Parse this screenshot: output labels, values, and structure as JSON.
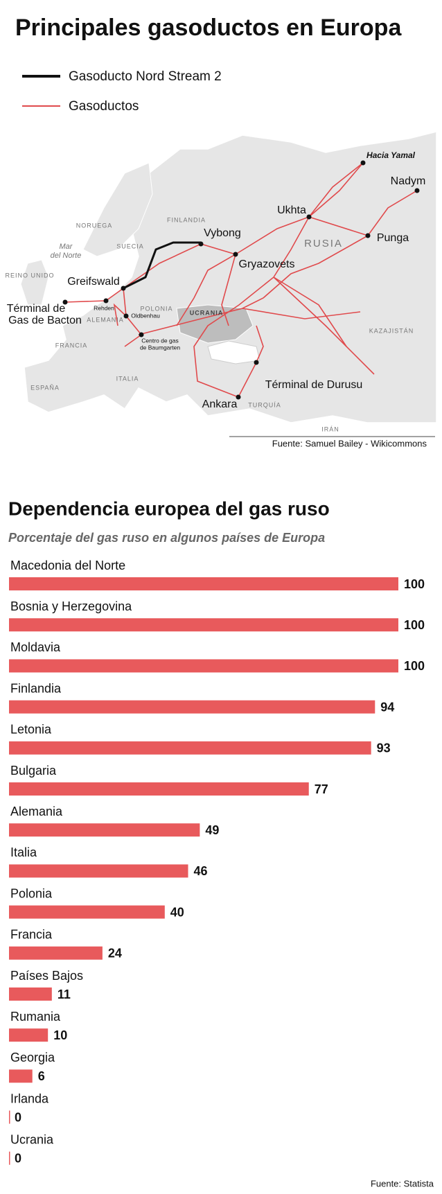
{
  "header": {
    "title": "Principales gasoductos en Europa"
  },
  "legend": {
    "items": [
      "Gasoducto Nord Stream 2",
      "Gasoductos"
    ]
  },
  "map": {
    "places": [
      "Hacia Yamal",
      "Nadym",
      "Ukhta",
      "Vybong",
      "Punga",
      "Gryazovets",
      "Greifswald",
      "Términal de",
      "Gas de Bacton",
      "Rehden",
      "Oldbenhau",
      "Centro de gas",
      "de Baumgarten",
      "Términal de Durusu",
      "Ankara"
    ],
    "regions": [
      "NORUEGA",
      "FINLANDIA",
      "SUECIA",
      "Mar",
      "del Norte",
      "REINO UNIDO",
      "RUSIA",
      "UCRANIA",
      "POLONIA",
      "ALEMANIA",
      "FRANCIA",
      "KAZAJISTÁN",
      "ESPAÑA",
      "ITALIA",
      "TURQUÍA",
      "IRÁN"
    ],
    "source": "Fuente: Samuel Bailey - Wikicommons"
  },
  "chart_data": {
    "type": "bar",
    "orientation": "horizontal",
    "title": "Dependencia europea del gas ruso",
    "subtitle": "Porcentaje del gas ruso en algunos países de Europa",
    "categories": [
      "Macedonia del Norte",
      "Bosnia y Herzegovina",
      "Moldavia",
      "Finlandia",
      "Letonia",
      "Bulgaria",
      "Alemania",
      "Italia",
      "Polonia",
      "Francia",
      "Países Bajos",
      "Rumania",
      "Georgia",
      "Irlanda",
      "Ucrania"
    ],
    "values": [
      100,
      100,
      100,
      94,
      93,
      77,
      49,
      46,
      40,
      24,
      11,
      10,
      6,
      0,
      0
    ],
    "color": "#e85a5c",
    "source": "Fuente: Statista"
  }
}
